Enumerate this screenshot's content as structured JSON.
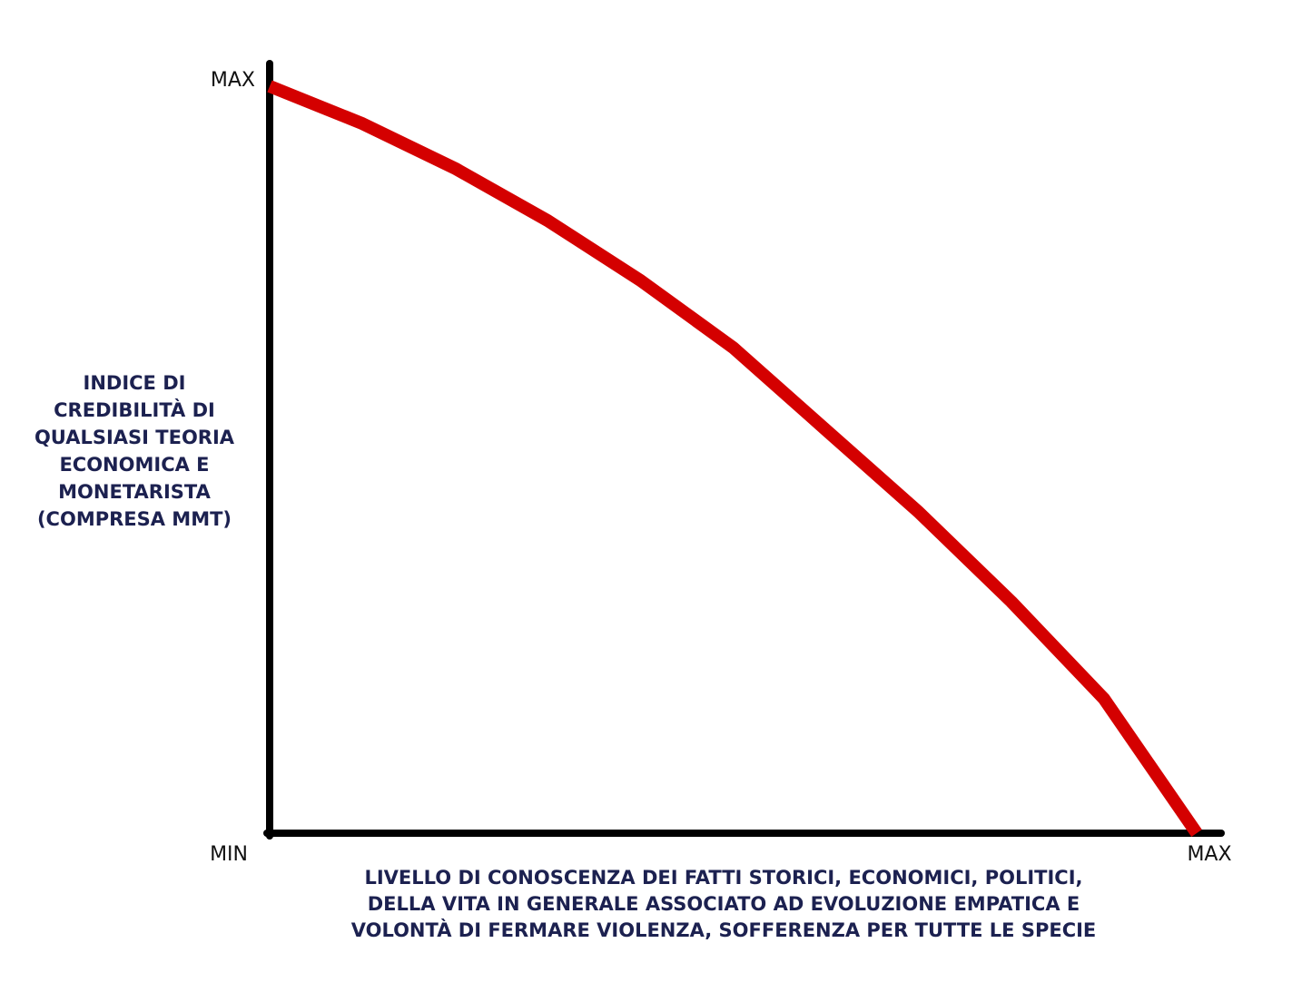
{
  "chart_data": {
    "type": "line",
    "xlabel": [
      "LIVELLO DI CONOSCENZA DEI FATTI STORICI, ECONOMICI, POLITICI,",
      "DELLA VITA IN GENERALE ASSOCIATO AD EVOLUZIONE EMPATICA E",
      "VOLONTÀ DI FERMARE VIOLENZA, SOFFERENZA PER TUTTE LE SPECIE"
    ],
    "ylabel": [
      "INDICE DI",
      "CREDIBILITÀ DI",
      "QUALSIASI TEORIA",
      "ECONOMICA E",
      "MONETARISTA",
      "(COMPRESA MMT)"
    ],
    "x": [
      0,
      0.1,
      0.2,
      0.3,
      0.4,
      0.5,
      0.6,
      0.7,
      0.8,
      0.9,
      1
    ],
    "series": [
      {
        "color": "#d40000",
        "values": [
          1,
          0.95,
          0.89,
          0.82,
          0.74,
          0.65,
          0.54,
          0.43,
          0.31,
          0.18,
          0
        ]
      }
    ],
    "xlim": [
      0,
      1
    ],
    "ylim": [
      0,
      1
    ],
    "xticks": [
      {
        "value": 0,
        "label": "MIN"
      },
      {
        "value": 1,
        "label": "MAX"
      }
    ],
    "yticks": [
      {
        "value": 1,
        "label": "MAX"
      }
    ]
  }
}
